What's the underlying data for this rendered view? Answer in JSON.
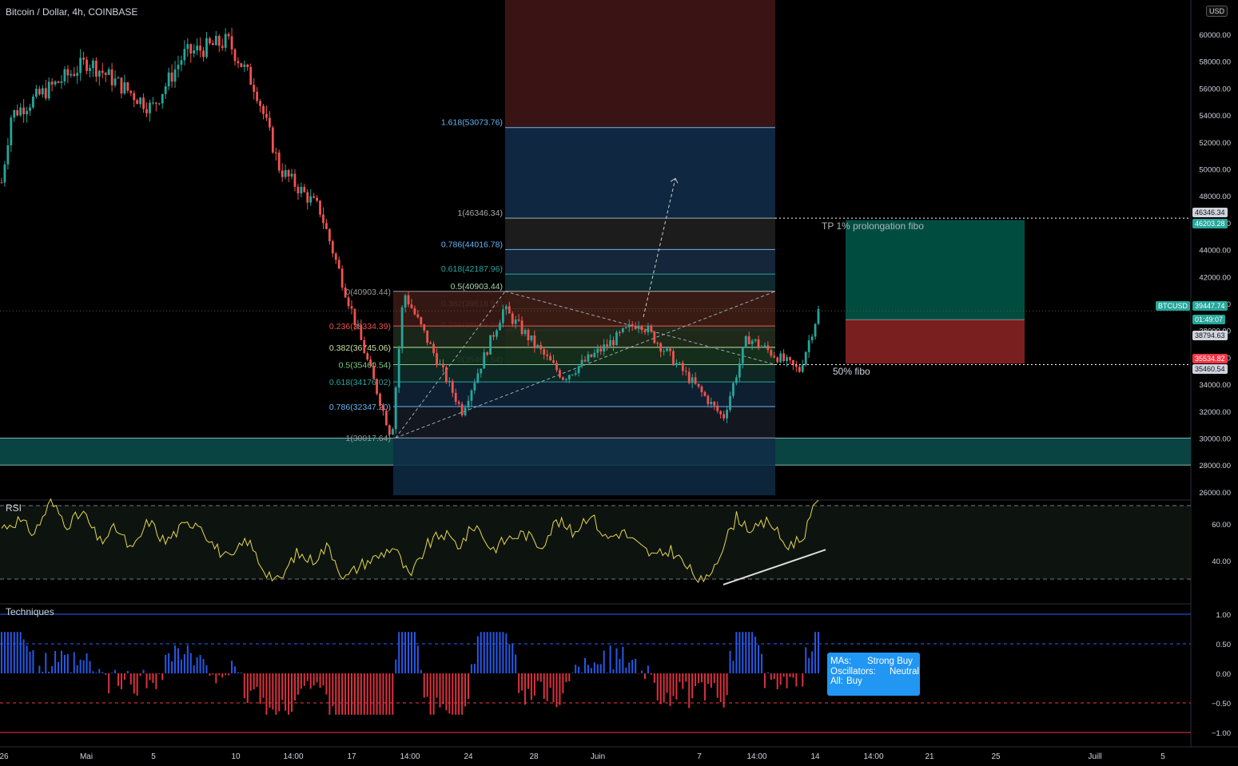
{
  "header": {
    "symbol_title": "Bitcoin / Dollar, 4h, COINBASE",
    "currency_badge": "USD"
  },
  "colors": {
    "up": "#26a69a",
    "down": "#ef5350",
    "rsi_line": "#e8d74a",
    "fib_blue": "#2962ff",
    "fib_red": "#f23645",
    "teal_zone": "#0b4f4d",
    "target_green": "#004d40",
    "stop_red": "#7a1f1f",
    "tech_box": "#2196f3"
  },
  "chart_data": {
    "type": "candlestick",
    "symbol": "BTCUSD",
    "interval": "4h",
    "exchange": "COINBASE",
    "price_axis_ticks": [
      60000,
      58000,
      56000,
      54000,
      52000,
      50000,
      48000,
      46000,
      44000,
      42000,
      40000,
      38000,
      36000,
      34000,
      32000,
      30000,
      28000,
      26000
    ],
    "price_axis_tick_labels": [
      "60000.00",
      "58000.00",
      "56000.00",
      "54000.00",
      "52000.00",
      "50000.00",
      "48000.00",
      "46000.00",
      "44000.00",
      "42000.00",
      "40000.00",
      "38000.00",
      "36000.00",
      "34000.00",
      "32000.00",
      "30000.00",
      "28000.00",
      "26000.00"
    ],
    "x_axis_labels": [
      "26",
      "Mai",
      "5",
      "10",
      "14:00",
      "17",
      "14:00",
      "24",
      "28",
      "Juin",
      "7",
      "14:00",
      "14",
      "14:00",
      "21",
      "25",
      "Juill",
      "5"
    ],
    "price_path_key_points": [
      {
        "date": "26 avr",
        "price": 49000
      },
      {
        "date": "27 avr",
        "price": 54000
      },
      {
        "date": "3 mai",
        "price": 58000
      },
      {
        "date": "5 mai",
        "price": 54500
      },
      {
        "date": "8 mai",
        "price": 58500
      },
      {
        "date": "10 mai",
        "price": 59500
      },
      {
        "date": "12 mai",
        "price": 56000
      },
      {
        "date": "13 mai",
        "price": 50000
      },
      {
        "date": "15 mai",
        "price": 47000
      },
      {
        "date": "19 mai",
        "price": 30017.64
      },
      {
        "date": "20 mai",
        "price": 40903.44
      },
      {
        "date": "24 mai",
        "price": 32000
      },
      {
        "date": "26 mai",
        "price": 39600
      },
      {
        "date": "30 mai",
        "price": 34500
      },
      {
        "date": "3 juin",
        "price": 38700
      },
      {
        "date": "8 juin",
        "price": 31500
      },
      {
        "date": "10 juin",
        "price": 37500
      },
      {
        "date": "13 juin",
        "price": 35000
      },
      {
        "date": "14 juin",
        "price": 39447.74
      }
    ],
    "last_price": "39447.74",
    "countdown": "01:49:07",
    "price_tags": [
      {
        "value": "46346.34",
        "style": "dark"
      },
      {
        "value": "46203.28",
        "style": "green"
      },
      {
        "value": "39447.74",
        "style": "teal"
      },
      {
        "value": "38794.63",
        "style": "dark"
      },
      {
        "value": "35534.82",
        "style": "red"
      },
      {
        "value": "35460.54",
        "style": "dark"
      }
    ],
    "symbol_tag": "BTCUSD",
    "fib_retracement": [
      {
        "label": "0(40903.44)",
        "price": 40903.44
      },
      {
        "label": "0.236(38334.39)",
        "price": 38334.39
      },
      {
        "label": "0.382(36745.06)",
        "price": 36745.06
      },
      {
        "label": "0.5(35460.54)",
        "price": 35460.54
      },
      {
        "label": "0.618(34176.02)",
        "price": 34176.02
      },
      {
        "label": "0.786(32347.20)",
        "price": 32347.2
      },
      {
        "label": "1(30017.64)",
        "price": 30017.64
      }
    ],
    "fib_extension": [
      {
        "label": "1.618(53073.76)",
        "price": 53073.76
      },
      {
        "label": "1(46346.34)",
        "price": 46346.34
      },
      {
        "label": "0.786(44016.78)",
        "price": 44016.78
      },
      {
        "label": "0.618(42187.96)",
        "price": 42187.96
      },
      {
        "label": "0.5(40903.44)",
        "price": 40903.44
      },
      {
        "label": "0.382(39618.91)",
        "price": 39618.91
      },
      {
        "label": "0.236(38029.59)",
        "price": 38029.59
      },
      {
        "label": "0(35460.54)",
        "price": 35460.54
      }
    ],
    "support_zone": {
      "from": 28000,
      "to": 30000
    },
    "long_position": {
      "entry": 38794.63,
      "target": 46203.28,
      "stop": 35534.82
    },
    "annotations": [
      "TP 1% prolongation fibo",
      "50% fibo"
    ],
    "rsi": {
      "title": "RSI",
      "ticks": [
        "60.00",
        "40.00"
      ],
      "ticks_values": [
        60,
        40
      ],
      "upper_band": 70,
      "lower_band": 30,
      "key_points": [
        58,
        62,
        55,
        72,
        60,
        66,
        50,
        58,
        45,
        62,
        50,
        58,
        62,
        48,
        40,
        52,
        36,
        28,
        44,
        40,
        48,
        30,
        38,
        42,
        48,
        30,
        48,
        55,
        48,
        60,
        46,
        52,
        55,
        48,
        62,
        55,
        66,
        52,
        56,
        48,
        42,
        46,
        36,
        27,
        45,
        64,
        56,
        62,
        48,
        52,
        74
      ],
      "divergence_line": {
        "from": 27,
        "to": 46
      }
    },
    "techniques": {
      "title": "Techniques",
      "ticks": [
        "1.00",
        "0.50",
        "0.00",
        "−0.50",
        "−1.00"
      ],
      "ticks_values": [
        1,
        0.5,
        0,
        -0.5,
        -1
      ],
      "summary": [
        {
          "key": "MAs:",
          "value": "Strong Buy"
        },
        {
          "key": "Oscillators:",
          "value": "Neutral"
        },
        {
          "key": "All:",
          "value": "Buy"
        }
      ]
    }
  }
}
